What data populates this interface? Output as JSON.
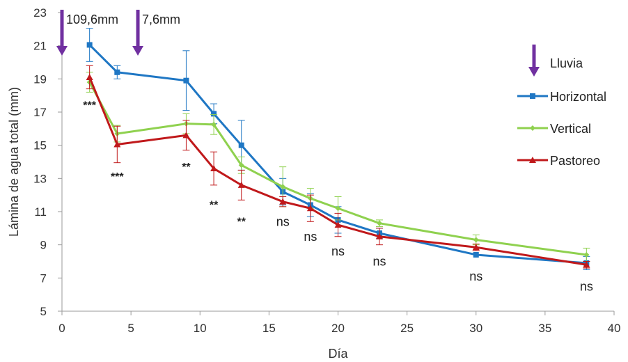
{
  "chart_data": {
    "type": "line",
    "xlabel": "Día",
    "ylabel": "Lámina de agua total (mm)",
    "xlim": [
      0,
      40
    ],
    "ylim": [
      5,
      23
    ],
    "xticks": [
      0,
      5,
      10,
      15,
      20,
      25,
      30,
      35,
      40
    ],
    "yticks": [
      5,
      7,
      9,
      11,
      13,
      15,
      17,
      19,
      21,
      23
    ],
    "grid": false,
    "legend_position": "right",
    "series": [
      {
        "name": "Horizontal",
        "color": "#1f77c4",
        "marker": "square",
        "x": [
          2,
          4,
          9,
          11,
          13,
          16,
          18,
          20,
          23,
          30,
          38
        ],
        "y": [
          21.05,
          19.4,
          18.9,
          16.9,
          15.0,
          12.2,
          11.4,
          10.5,
          9.7,
          8.4,
          7.9
        ],
        "err": [
          1.0,
          0.4,
          1.8,
          0.6,
          1.5,
          0.8,
          0.7,
          0.8,
          0.3,
          0.0,
          0.4
        ]
      },
      {
        "name": "Vertical",
        "color": "#8fd14f",
        "marker": "diamond",
        "x": [
          2,
          4,
          9,
          11,
          13,
          16,
          18,
          20,
          23,
          30,
          38
        ],
        "y": [
          18.8,
          15.7,
          16.3,
          16.25,
          13.8,
          12.5,
          11.8,
          11.2,
          10.3,
          9.3,
          8.4
        ],
        "err": [
          0.6,
          0.5,
          0.6,
          0.6,
          0.5,
          1.2,
          0.6,
          0.7,
          0.2,
          0.3,
          0.4
        ]
      },
      {
        "name": "Pastoreo",
        "color": "#c0191b",
        "marker": "triangle",
        "x": [
          2,
          4,
          9,
          11,
          13,
          16,
          18,
          20,
          23,
          30,
          38
        ],
        "y": [
          19.1,
          15.05,
          15.6,
          13.6,
          12.6,
          11.6,
          11.2,
          10.2,
          9.5,
          8.85,
          7.8
        ],
        "err": [
          0.7,
          1.1,
          0.9,
          1.0,
          0.9,
          0.3,
          0.8,
          0.7,
          0.5,
          0.2,
          0.2
        ]
      }
    ],
    "significance": [
      {
        "x": 2,
        "y": 17.6,
        "label": "***"
      },
      {
        "x": 4,
        "y": 13.3,
        "label": "***"
      },
      {
        "x": 9,
        "y": 13.9,
        "label": "**"
      },
      {
        "x": 11,
        "y": 11.6,
        "label": "**"
      },
      {
        "x": 13,
        "y": 10.6,
        "label": "**"
      },
      {
        "x": 16,
        "y": 10.4,
        "label": "ns"
      },
      {
        "x": 18,
        "y": 9.5,
        "label": "ns"
      },
      {
        "x": 20,
        "y": 8.6,
        "label": "ns"
      },
      {
        "x": 23,
        "y": 8.0,
        "label": "ns"
      },
      {
        "x": 30,
        "y": 7.1,
        "label": "ns"
      },
      {
        "x": 38,
        "y": 6.5,
        "label": "ns"
      }
    ],
    "rain_events": [
      {
        "day": 0,
        "label": "109,6mm"
      },
      {
        "day": 5.5,
        "label": "7,6mm"
      }
    ],
    "rain_legend_label": "Lluvia",
    "rain_color": "#7030a0"
  }
}
